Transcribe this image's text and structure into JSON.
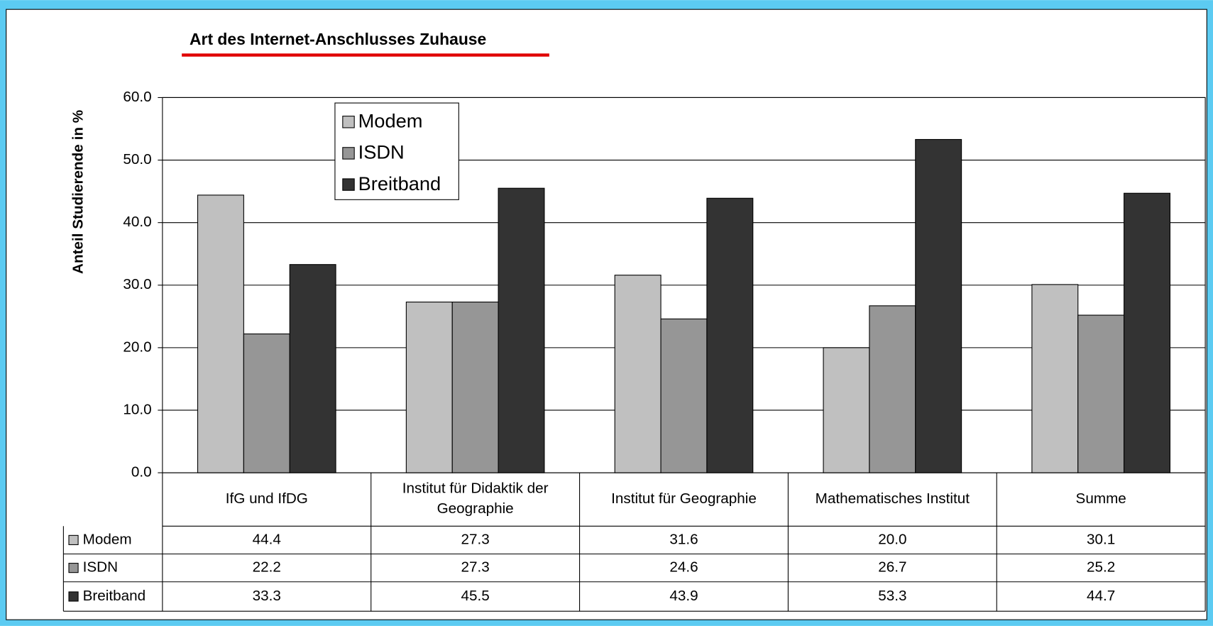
{
  "chart_data": {
    "type": "bar",
    "title": "Art des Internet-Anschlusses Zuhause",
    "y_label": "Anteil Studierende in %",
    "categories": [
      "IfG und IfDG",
      "Institut für Didaktik der Geographie",
      "Institut für Geographie",
      "Mathematisches Institut",
      "Summe"
    ],
    "series": [
      {
        "name": "Modem",
        "color": "#c0c0c0",
        "values": [
          44.4,
          27.3,
          31.6,
          20.0,
          30.1
        ],
        "value_labels": [
          "44.4",
          "27.3",
          "31.6",
          "20.0",
          "30.1"
        ]
      },
      {
        "name": "ISDN",
        "color": "#969696",
        "values": [
          22.2,
          27.3,
          24.6,
          26.7,
          25.2
        ],
        "value_labels": [
          "22.2",
          "27.3",
          "24.6",
          "26.7",
          "25.2"
        ]
      },
      {
        "name": "Breitband",
        "color": "#333333",
        "values": [
          33.3,
          45.5,
          43.9,
          53.3,
          44.7
        ],
        "value_labels": [
          "33.3",
          "45.5",
          "43.9",
          "53.3",
          "44.7"
        ]
      }
    ],
    "ylim": [
      0,
      60
    ],
    "yticks": [
      {
        "value": 0,
        "label": "0.0"
      },
      {
        "value": 10,
        "label": "10.0"
      },
      {
        "value": 20,
        "label": "20.0"
      },
      {
        "value": 30,
        "label": "30.0"
      },
      {
        "value": 40,
        "label": "40.0"
      },
      {
        "value": 50,
        "label": "50.0"
      },
      {
        "value": 60,
        "label": "60.0"
      }
    ],
    "grid": true,
    "legend": "top-left"
  }
}
